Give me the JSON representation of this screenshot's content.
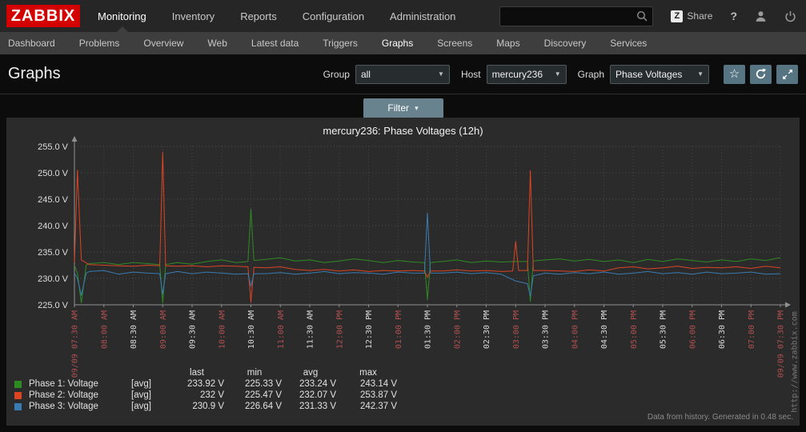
{
  "header": {
    "logo": "ZABBIX",
    "menu": [
      "Monitoring",
      "Inventory",
      "Reports",
      "Configuration",
      "Administration"
    ],
    "active_menu": "Monitoring",
    "search_value": "",
    "share_label": "Share",
    "share_badge": "Z",
    "help_label": "?"
  },
  "subnav": {
    "items": [
      "Dashboard",
      "Problems",
      "Overview",
      "Web",
      "Latest data",
      "Triggers",
      "Graphs",
      "Screens",
      "Maps",
      "Discovery",
      "Services"
    ],
    "active": "Graphs"
  },
  "page": {
    "title": "Graphs",
    "filters": [
      {
        "label": "Group",
        "value": "all"
      },
      {
        "label": "Host",
        "value": "mercury236"
      },
      {
        "label": "Graph",
        "value": "Phase Voltages"
      }
    ],
    "filter_button": "Filter"
  },
  "chart_data": {
    "type": "line",
    "title": "mercury236: Phase Voltages (12h)",
    "ylim": [
      225,
      255
    ],
    "ytick_step": 5,
    "ytick_labels": [
      "255.0 V",
      "250.0 V",
      "245.0 V",
      "240.0 V",
      "235.0 V",
      "230.0 V",
      "225.0 V"
    ],
    "xlim_minutes": [
      0,
      720
    ],
    "xticks": [
      {
        "t": 0,
        "label": "09/09 07:30 AM",
        "major": true
      },
      {
        "t": 30,
        "label": "08:00 AM",
        "major": true
      },
      {
        "t": 60,
        "label": "08:30 AM",
        "major": false
      },
      {
        "t": 90,
        "label": "09:00 AM",
        "major": true
      },
      {
        "t": 120,
        "label": "09:30 AM",
        "major": false
      },
      {
        "t": 150,
        "label": "10:00 AM",
        "major": true
      },
      {
        "t": 180,
        "label": "10:30 AM",
        "major": false
      },
      {
        "t": 210,
        "label": "11:00 AM",
        "major": true
      },
      {
        "t": 240,
        "label": "11:30 AM",
        "major": false
      },
      {
        "t": 270,
        "label": "12:00 PM",
        "major": true
      },
      {
        "t": 300,
        "label": "12:30 PM",
        "major": false
      },
      {
        "t": 330,
        "label": "01:00 PM",
        "major": true
      },
      {
        "t": 360,
        "label": "01:30 PM",
        "major": false
      },
      {
        "t": 390,
        "label": "02:00 PM",
        "major": true
      },
      {
        "t": 420,
        "label": "02:30 PM",
        "major": false
      },
      {
        "t": 450,
        "label": "03:00 PM",
        "major": true
      },
      {
        "t": 480,
        "label": "03:30 PM",
        "major": false
      },
      {
        "t": 510,
        "label": "04:00 PM",
        "major": true
      },
      {
        "t": 540,
        "label": "04:30 PM",
        "major": false
      },
      {
        "t": 570,
        "label": "05:00 PM",
        "major": true
      },
      {
        "t": 600,
        "label": "05:30 PM",
        "major": false
      },
      {
        "t": 630,
        "label": "06:00 PM",
        "major": true
      },
      {
        "t": 660,
        "label": "06:30 PM",
        "major": false
      },
      {
        "t": 690,
        "label": "07:00 PM",
        "major": true
      },
      {
        "t": 720,
        "label": "09/09 07:30 PM",
        "major": true
      }
    ],
    "xtick_colors": {
      "major": "#b05050",
      "minor": "#d8d8d8"
    },
    "grid_color": "#4c4c4c",
    "axis_color": "#909090",
    "series": [
      {
        "name": "Phase 1: Voltage",
        "color": "#2e8b22",
        "points": [
          [
            0,
            232.5
          ],
          [
            3,
            231.0
          ],
          [
            7,
            225.4
          ],
          [
            12,
            232.5
          ],
          [
            15,
            232.8
          ],
          [
            30,
            233.0
          ],
          [
            45,
            232.6
          ],
          [
            60,
            233.0
          ],
          [
            75,
            232.8
          ],
          [
            87,
            232.6
          ],
          [
            90,
            225.33
          ],
          [
            93,
            232.6
          ],
          [
            105,
            233.0
          ],
          [
            120,
            232.7
          ],
          [
            135,
            233.2
          ],
          [
            150,
            233.5
          ],
          [
            165,
            233.0
          ],
          [
            177,
            233.2
          ],
          [
            180,
            243.14
          ],
          [
            183,
            233.4
          ],
          [
            195,
            233.6
          ],
          [
            210,
            233.9
          ],
          [
            225,
            233.3
          ],
          [
            240,
            233.5
          ],
          [
            255,
            233.0
          ],
          [
            270,
            233.3
          ],
          [
            285,
            233.7
          ],
          [
            300,
            233.4
          ],
          [
            315,
            233.0
          ],
          [
            330,
            233.4
          ],
          [
            345,
            233.1
          ],
          [
            357,
            233.0
          ],
          [
            360,
            226.0
          ],
          [
            363,
            233.0
          ],
          [
            375,
            233.2
          ],
          [
            390,
            233.5
          ],
          [
            405,
            233.0
          ],
          [
            420,
            233.3
          ],
          [
            435,
            233.1
          ],
          [
            450,
            233.2
          ],
          [
            462,
            233.2
          ],
          [
            465,
            225.6
          ],
          [
            468,
            233.3
          ],
          [
            480,
            233.5
          ],
          [
            495,
            233.7
          ],
          [
            510,
            233.3
          ],
          [
            525,
            233.6
          ],
          [
            540,
            233.2
          ],
          [
            555,
            233.5
          ],
          [
            570,
            233.0
          ],
          [
            585,
            233.6
          ],
          [
            600,
            233.2
          ],
          [
            615,
            233.7
          ],
          [
            630,
            233.4
          ],
          [
            645,
            233.1
          ],
          [
            660,
            233.5
          ],
          [
            675,
            233.2
          ],
          [
            690,
            233.7
          ],
          [
            705,
            233.4
          ],
          [
            720,
            233.92
          ]
        ]
      },
      {
        "name": "Phase 2: Voltage",
        "color": "#dd4422",
        "points": [
          [
            0,
            233.0
          ],
          [
            3,
            250.5
          ],
          [
            7,
            233.5
          ],
          [
            15,
            232.6
          ],
          [
            30,
            232.5
          ],
          [
            45,
            232.4
          ],
          [
            60,
            232.3
          ],
          [
            75,
            232.5
          ],
          [
            87,
            232.4
          ],
          [
            90,
            253.87
          ],
          [
            93,
            232.4
          ],
          [
            105,
            232.3
          ],
          [
            120,
            232.4
          ],
          [
            135,
            232.2
          ],
          [
            150,
            232.4
          ],
          [
            165,
            232.3
          ],
          [
            177,
            232.2
          ],
          [
            180,
            225.47
          ],
          [
            183,
            232.1
          ],
          [
            195,
            232.0
          ],
          [
            210,
            232.2
          ],
          [
            225,
            231.7
          ],
          [
            240,
            231.5
          ],
          [
            255,
            231.7
          ],
          [
            270,
            231.4
          ],
          [
            285,
            231.6
          ],
          [
            300,
            231.3
          ],
          [
            315,
            231.5
          ],
          [
            330,
            231.4
          ],
          [
            345,
            231.5
          ],
          [
            357,
            231.4
          ],
          [
            360,
            230.2
          ],
          [
            363,
            231.4
          ],
          [
            375,
            231.4
          ],
          [
            390,
            231.6
          ],
          [
            405,
            231.4
          ],
          [
            420,
            231.5
          ],
          [
            435,
            231.3
          ],
          [
            447,
            231.4
          ],
          [
            450,
            237.0
          ],
          [
            453,
            231.5
          ],
          [
            462,
            231.5
          ],
          [
            465,
            250.4
          ],
          [
            468,
            231.5
          ],
          [
            480,
            231.5
          ],
          [
            495,
            231.4
          ],
          [
            510,
            231.3
          ],
          [
            525,
            231.6
          ],
          [
            540,
            231.4
          ],
          [
            555,
            232.0
          ],
          [
            570,
            232.2
          ],
          [
            585,
            231.8
          ],
          [
            600,
            232.0
          ],
          [
            615,
            232.3
          ],
          [
            630,
            231.9
          ],
          [
            645,
            232.1
          ],
          [
            660,
            232.0
          ],
          [
            675,
            232.2
          ],
          [
            690,
            231.9
          ],
          [
            705,
            232.3
          ],
          [
            720,
            232.0
          ]
        ]
      },
      {
        "name": "Phase 3: Voltage",
        "color": "#3a7cb1",
        "points": [
          [
            0,
            231.0
          ],
          [
            3,
            230.0
          ],
          [
            7,
            226.8
          ],
          [
            12,
            231.0
          ],
          [
            15,
            231.3
          ],
          [
            30,
            231.5
          ],
          [
            45,
            230.8
          ],
          [
            60,
            231.2
          ],
          [
            75,
            231.0
          ],
          [
            87,
            230.9
          ],
          [
            90,
            227.0
          ],
          [
            93,
            230.9
          ],
          [
            105,
            231.3
          ],
          [
            120,
            230.9
          ],
          [
            135,
            231.2
          ],
          [
            150,
            231.0
          ],
          [
            165,
            230.8
          ],
          [
            177,
            230.9
          ],
          [
            180,
            228.5
          ],
          [
            183,
            230.9
          ],
          [
            195,
            230.9
          ],
          [
            210,
            231.1
          ],
          [
            225,
            230.8
          ],
          [
            240,
            231.0
          ],
          [
            255,
            231.3
          ],
          [
            270,
            230.9
          ],
          [
            285,
            231.1
          ],
          [
            300,
            231.0
          ],
          [
            315,
            230.8
          ],
          [
            330,
            231.2
          ],
          [
            345,
            231.0
          ],
          [
            357,
            231.0
          ],
          [
            360,
            242.37
          ],
          [
            363,
            231.0
          ],
          [
            375,
            231.0
          ],
          [
            390,
            231.2
          ],
          [
            405,
            230.9
          ],
          [
            420,
            231.1
          ],
          [
            435,
            230.8
          ],
          [
            450,
            229.5
          ],
          [
            462,
            229.0
          ],
          [
            465,
            226.64
          ],
          [
            468,
            230.5
          ],
          [
            480,
            231.0
          ],
          [
            495,
            230.8
          ],
          [
            510,
            231.1
          ],
          [
            525,
            230.9
          ],
          [
            540,
            231.2
          ],
          [
            555,
            230.8
          ],
          [
            570,
            231.0
          ],
          [
            585,
            231.3
          ],
          [
            600,
            230.9
          ],
          [
            615,
            231.1
          ],
          [
            630,
            230.8
          ],
          [
            645,
            231.2
          ],
          [
            660,
            230.9
          ],
          [
            675,
            231.0
          ],
          [
            690,
            231.2
          ],
          [
            705,
            230.8
          ],
          [
            720,
            230.9
          ]
        ]
      }
    ],
    "legend": {
      "columns": [
        "last",
        "min",
        "avg",
        "max"
      ],
      "rows": [
        {
          "name": "Phase 1: Voltage",
          "func": "[avg]",
          "last": "233.92 V",
          "min": "225.33 V",
          "avg": "233.24 V",
          "max": "243.14 V",
          "color": "#2e8b22"
        },
        {
          "name": "Phase 2: Voltage",
          "func": "[avg]",
          "last": "232 V",
          "min": "225.47 V",
          "avg": "232.07 V",
          "max": "253.87 V",
          "color": "#dd4422"
        },
        {
          "name": "Phase 3: Voltage",
          "func": "[avg]",
          "last": "230.9 V",
          "min": "226.64 V",
          "avg": "231.33 V",
          "max": "242.37 V",
          "color": "#3a7cb1"
        }
      ]
    },
    "footer": "Data from history. Generated in 0.48 sec.",
    "watermark": "http://www.zabbix.com"
  }
}
